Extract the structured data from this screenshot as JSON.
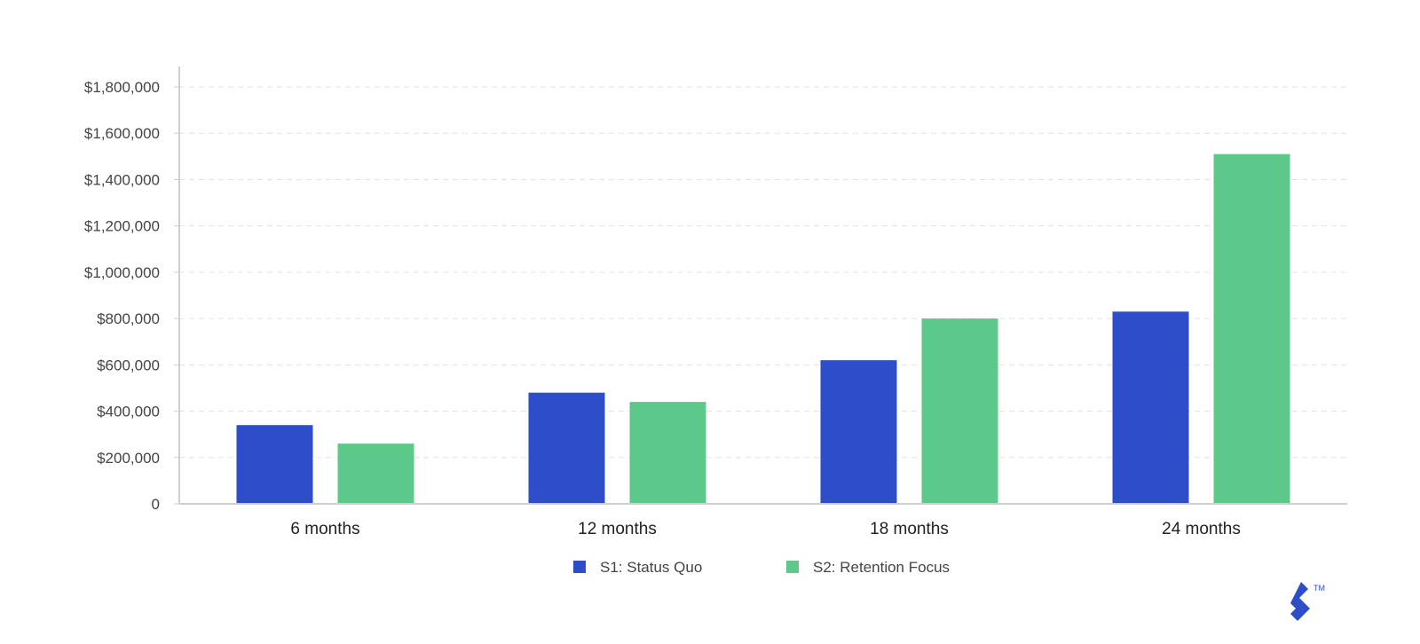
{
  "chart_data": {
    "type": "bar",
    "categories": [
      "6 months",
      "12 months",
      "18 months",
      "24 months"
    ],
    "series": [
      {
        "name": "S1: Status Quo",
        "color": "#2d4ec8",
        "values": [
          340000,
          480000,
          620000,
          830000
        ]
      },
      {
        "name": "S2: Retention Focus",
        "color": "#5cc98a",
        "values": [
          260000,
          440000,
          800000,
          1510000
        ]
      }
    ],
    "y_ticks": [
      0,
      200000,
      400000,
      600000,
      800000,
      1000000,
      1200000,
      1400000,
      1600000,
      1800000
    ],
    "y_tick_labels": [
      "0",
      "$200,000",
      "$400,000",
      "$600,000",
      "$800,000",
      "$1,000,000",
      "$1,200,000",
      "$1,400,000",
      "$1,600,000",
      "$1,800,000"
    ],
    "ylim": [
      0,
      1800000
    ],
    "grid": true,
    "legend": "bottom-center"
  },
  "logo": {
    "name": "toptal-logo-icon",
    "color": "#2d4ec8",
    "mark": "TM"
  }
}
